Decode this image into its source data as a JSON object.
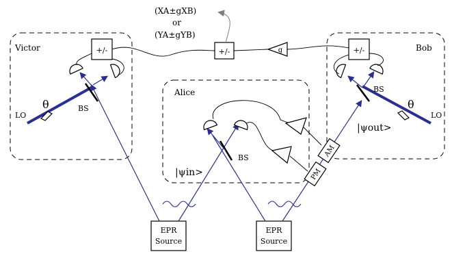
{
  "colors": {
    "beam": "#2b2f8f",
    "line": "#000000",
    "arrow_out": "#808080",
    "background": "#ffffff"
  },
  "icons": {
    "detector": "detector-icon",
    "beam_splitter": "beam-splitter-icon",
    "amplifier": "amplifier-icon",
    "polarizer": "polarizer-icon",
    "squiggle": "squiggle-icon"
  },
  "labels": {
    "victor": "Victor",
    "bob": "Bob",
    "alice": "Alice",
    "lo_left": "LO",
    "lo_right": "LO",
    "theta_left": "θ",
    "theta_right": "θ",
    "bs_victor": "BS",
    "bs_alice": "BS",
    "bs_bob": "BS",
    "plusminus_victor": "+/-",
    "plusminus_center": "+/-",
    "plusminus_bob": "+/-",
    "gain": "g",
    "am": "AM",
    "pm": "PM",
    "psi_in": "|ψin>",
    "psi_out": "|ψout>",
    "epr_left_line1": "EPR",
    "epr_left_line2": "Source",
    "epr_right_line1": "EPR",
    "epr_right_line2": "Source",
    "output_line1": "(XA±gXB)",
    "output_or": "or",
    "output_line2": "(YA±gYB)"
  }
}
